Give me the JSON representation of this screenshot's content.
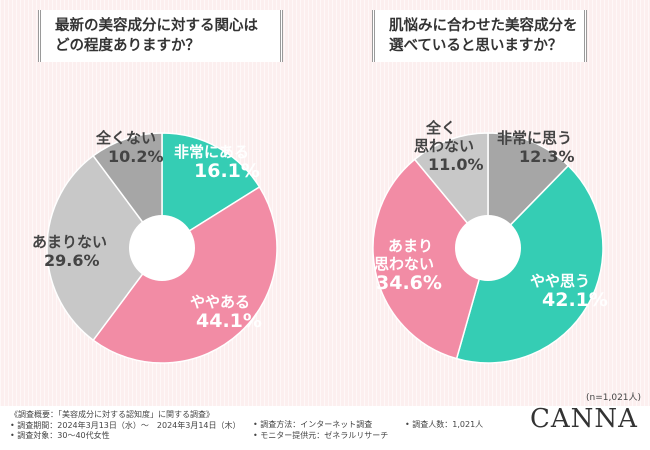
{
  "colors": {
    "teal": "#35cdb4",
    "pink": "#f28ca5",
    "light_gray": "#c8c8c8",
    "dark_gray": "#a6a6a6",
    "background": "#fcefef"
  },
  "chart_data": [
    {
      "type": "pie",
      "variant": "donut",
      "title": "最新の美容成分に対する関心はどの程度ありますか？",
      "title_lines": [
        "最新の美容成分に対する関心は",
        "どの程度ありますか？"
      ],
      "slices": [
        {
          "label": "非常にある",
          "value": 16.1,
          "display": "16.1%",
          "color_key": "teal"
        },
        {
          "label": "ややある",
          "value": 44.1,
          "display": "44.1%",
          "color_key": "pink"
        },
        {
          "label": "あまりない",
          "value": 29.6,
          "display": "29.6%",
          "color_key": "light_gray"
        },
        {
          "label": "全くない",
          "value": 10.2,
          "display": "10.2%",
          "color_key": "dark_gray"
        }
      ]
    },
    {
      "type": "pie",
      "variant": "donut",
      "title": "肌悩みに合わせた美容成分を選べていると思いますか？",
      "title_lines": [
        "肌悩みに合わせた美容成分を",
        "選べていると思いますか？"
      ],
      "slices": [
        {
          "label": "非常に思う",
          "value": 12.3,
          "display": "12.3%",
          "color_key": "dark_gray"
        },
        {
          "label": "やや思う",
          "value": 42.1,
          "display": "42.1%",
          "color_key": "teal"
        },
        {
          "label": "あまり思わない",
          "label_lines": [
            "あまり",
            "思わない"
          ],
          "value": 34.6,
          "display": "34.6%",
          "color_key": "pink"
        },
        {
          "label": "全く思わない",
          "label_lines": [
            "全く",
            "思わない"
          ],
          "value": 11.0,
          "display": "11.0%",
          "color_key": "light_gray"
        }
      ]
    }
  ],
  "sample_note": "(n=1,021人)",
  "footer": {
    "survey_overview": "《調査概要：「美容成分に対する認知度」に関する調査》",
    "period": "• 調査期間：2024年3月13日（水）～　2024年3月14日（木）",
    "target": "• 調査対象：30～40代女性",
    "method": "• 調査方法：インターネット調査",
    "provider": "• モニター提供元：ゼネラルリサーチ",
    "count": "• 調査人数：1,021人"
  },
  "brand": "CANNA"
}
